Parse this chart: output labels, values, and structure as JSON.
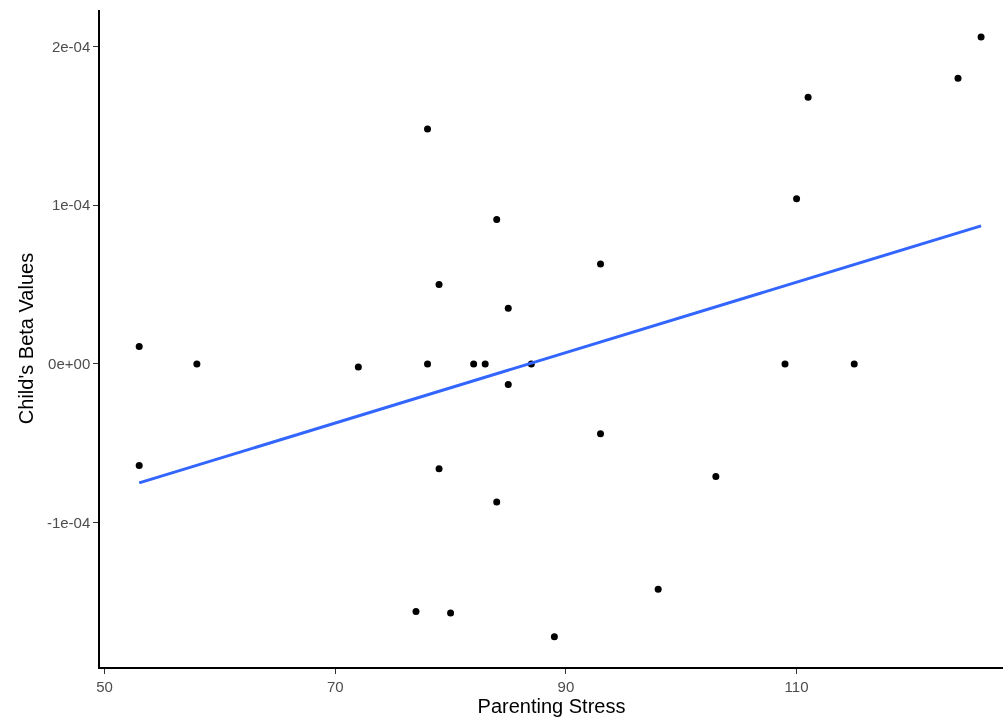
{
  "chart_data": {
    "type": "scatter",
    "xlabel": "Parenting Stress",
    "ylabel": "Child's Beta Values",
    "xlim": [
      49.6,
      127.9
    ],
    "xticks": [
      50,
      70,
      90,
      110
    ],
    "ylim": [
      -0.000191,
      0.000223
    ],
    "yticks": [
      {
        "value": -0.0001,
        "label": "-1e-04"
      },
      {
        "value": 0,
        "label": "0e+00"
      },
      {
        "value": 0.0001,
        "label": "1e-04"
      },
      {
        "value": 0.0002,
        "label": "2e-04"
      }
    ],
    "grid": false,
    "series": [
      {
        "marker": "circle",
        "color": "#000000",
        "x": [
          53,
          53,
          58,
          72,
          78,
          78,
          79,
          79,
          77,
          80,
          82,
          83,
          84,
          84,
          85,
          85,
          87,
          89,
          93,
          93,
          98,
          103,
          109,
          110,
          111,
          115,
          124,
          126
        ],
        "values": [
          1.1e-05,
          -6.4e-05,
          0,
          -2e-06,
          0.000148,
          0,
          5e-05,
          -6.6e-05,
          -0.000156,
          -0.000157,
          0,
          0,
          9.1e-05,
          -8.7e-05,
          3.5e-05,
          -1.3e-05,
          0,
          -0.000172,
          6.3e-05,
          -4.4e-05,
          -0.000142,
          -7.1e-05,
          0,
          0.000104,
          0.000168,
          0,
          0.00018,
          0.000206
        ]
      },
      {
        "type": "line",
        "marker": "none",
        "color": "#3366ff",
        "x": [
          53,
          126
        ],
        "values": [
          -7.5e-05,
          8.7e-05
        ],
        "line_style": "solid"
      }
    ]
  }
}
